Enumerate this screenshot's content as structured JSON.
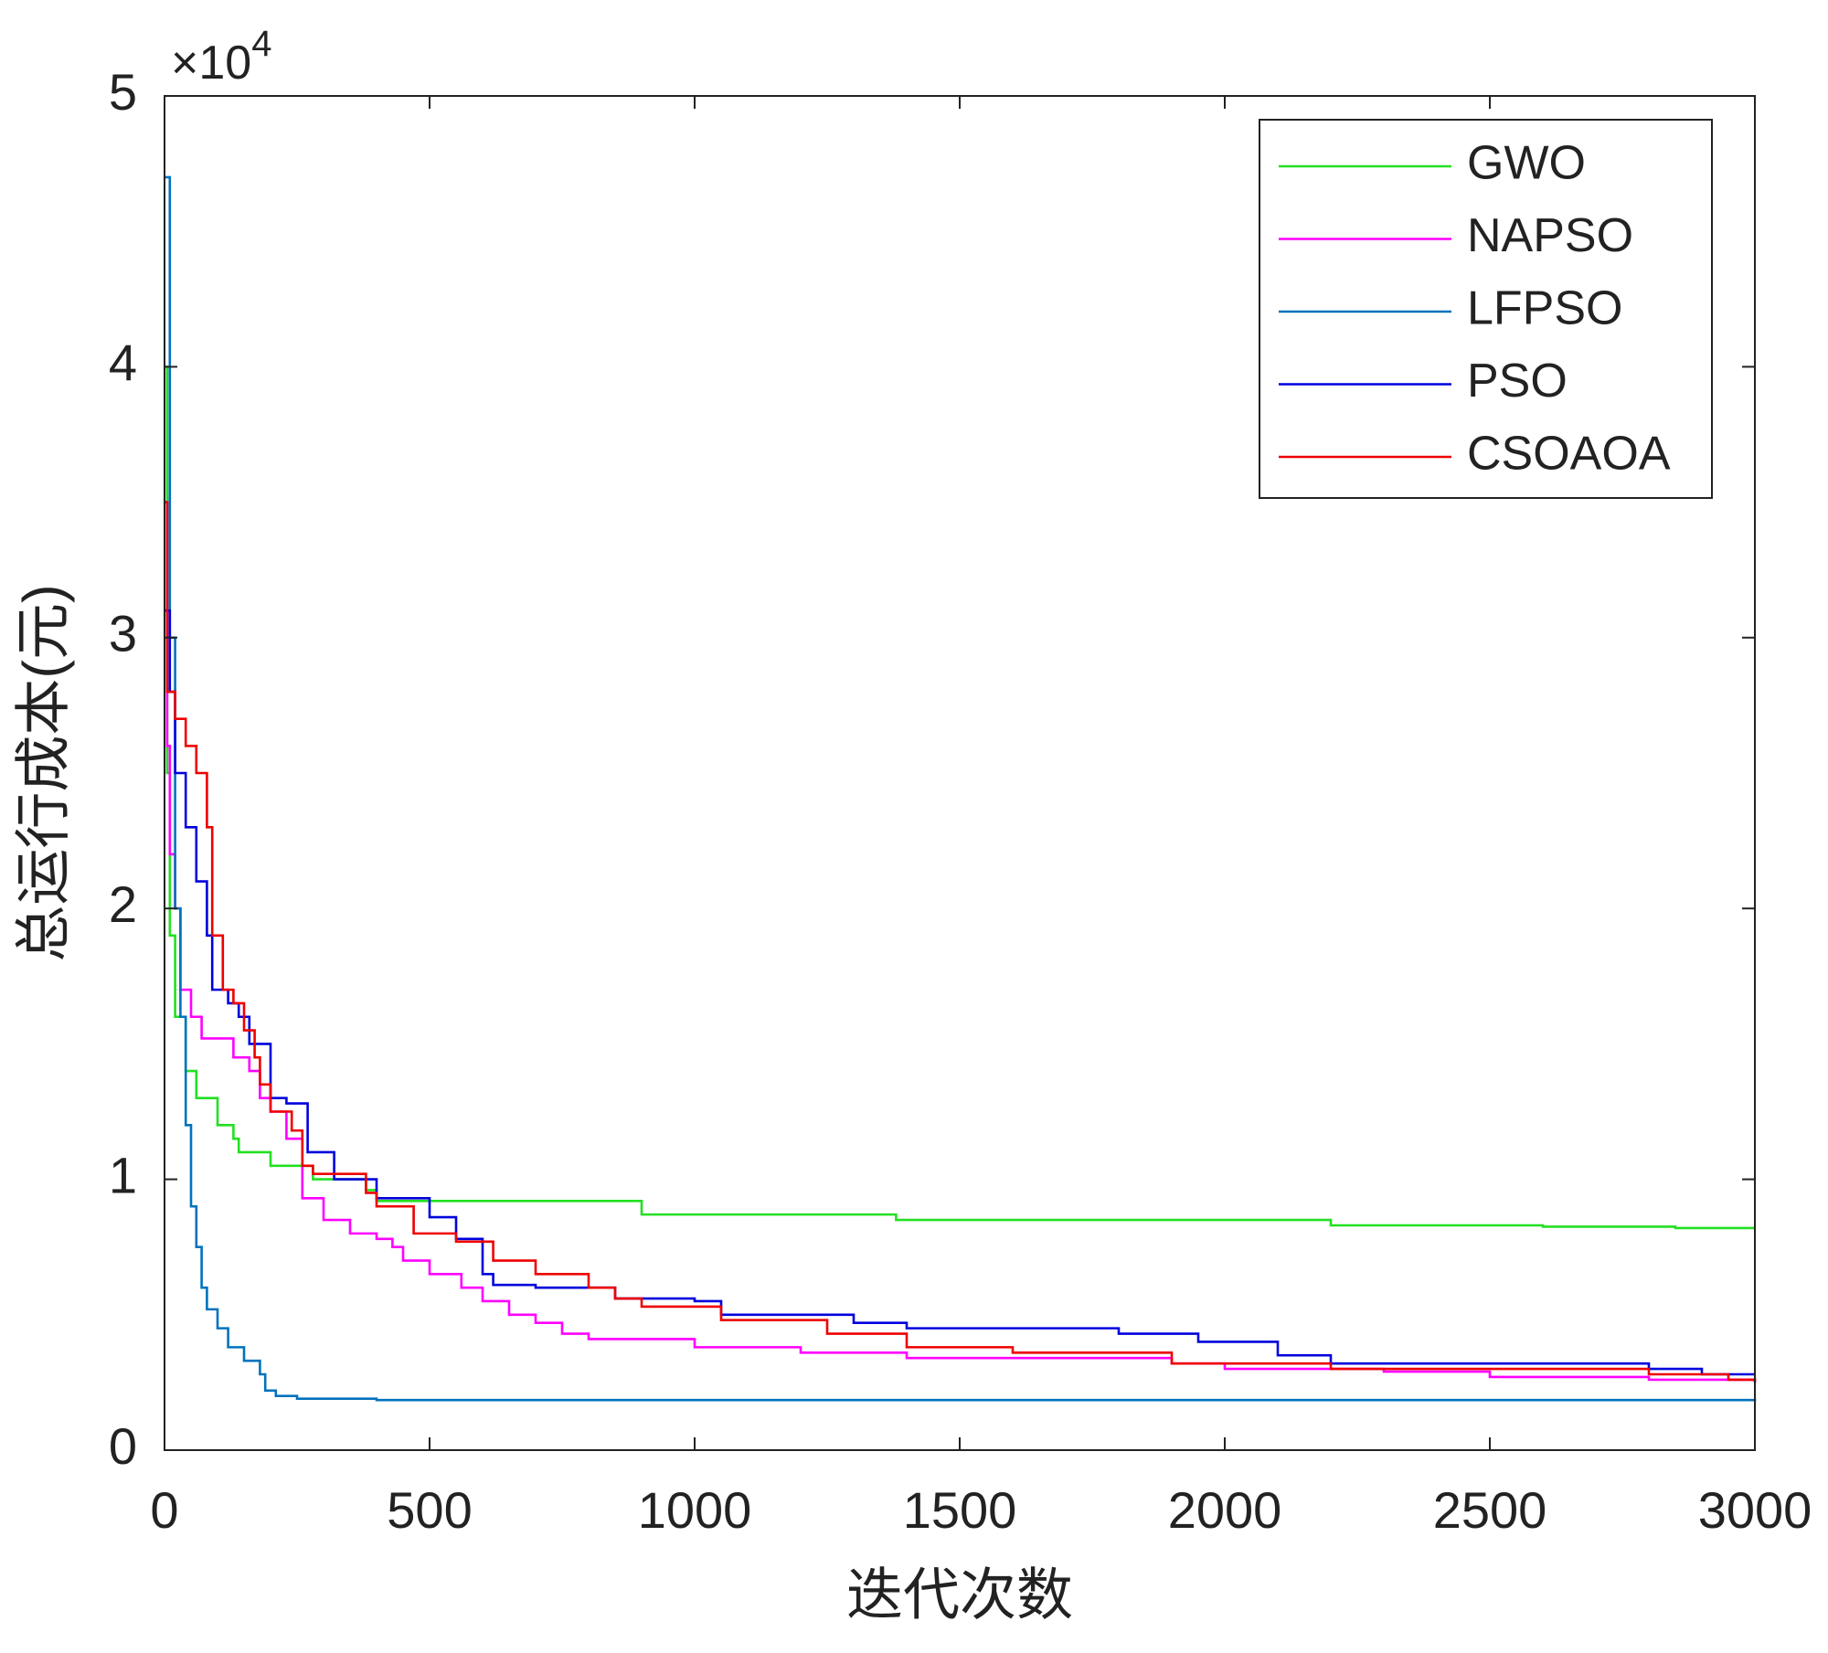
{
  "chart_data": {
    "type": "line",
    "drawstyle": "steps-post",
    "x_axis_label": "迭代次数",
    "y_axis_label": "总运行成本(元)",
    "y_scale_label": "×10",
    "y_scale_exponent": "4",
    "xlim": [
      0,
      3000
    ],
    "xticks": [
      0,
      500,
      1000,
      1500,
      2000,
      2500,
      3000
    ],
    "ylim": [
      0,
      5
    ],
    "yticks": [
      0,
      1,
      2,
      3,
      4,
      5
    ],
    "grid": false,
    "legend": "upper right",
    "series": [
      {
        "name": "GWO",
        "color": "#22e022",
        "x": [
          0,
          5,
          10,
          20,
          40,
          60,
          100,
          130,
          140,
          200,
          280,
          380,
          400,
          900,
          1380,
          2200,
          2600,
          2850,
          3000
        ],
        "values": [
          4.0,
          2.5,
          1.9,
          1.6,
          1.4,
          1.3,
          1.2,
          1.15,
          1.1,
          1.05,
          1.0,
          0.96,
          0.92,
          0.87,
          0.85,
          0.83,
          0.825,
          0.82,
          0.82
        ]
      },
      {
        "name": "NAPSO",
        "color": "#ff00ff",
        "x": [
          0,
          5,
          10,
          20,
          30,
          50,
          70,
          130,
          160,
          180,
          200,
          230,
          260,
          300,
          350,
          400,
          430,
          450,
          500,
          560,
          600,
          650,
          700,
          750,
          800,
          1000,
          1200,
          1400,
          1900,
          2000,
          2300,
          2500,
          2800,
          3000
        ],
        "values": [
          3.5,
          2.6,
          2.2,
          2.0,
          1.7,
          1.6,
          1.52,
          1.45,
          1.4,
          1.3,
          1.25,
          1.15,
          0.93,
          0.85,
          0.8,
          0.78,
          0.75,
          0.7,
          0.65,
          0.6,
          0.55,
          0.5,
          0.47,
          0.43,
          0.41,
          0.38,
          0.36,
          0.34,
          0.32,
          0.3,
          0.29,
          0.27,
          0.26,
          0.25
        ]
      },
      {
        "name": "LFPSO",
        "color": "#0072bd",
        "x": [
          0,
          10,
          20,
          30,
          40,
          50,
          60,
          70,
          80,
          100,
          120,
          150,
          180,
          190,
          210,
          250,
          400,
          3000
        ],
        "values": [
          4.7,
          3.0,
          2.0,
          1.6,
          1.2,
          0.9,
          0.75,
          0.6,
          0.52,
          0.45,
          0.38,
          0.33,
          0.28,
          0.22,
          0.2,
          0.19,
          0.185,
          0.18
        ]
      },
      {
        "name": "PSO",
        "color": "#0000dd",
        "x": [
          0,
          10,
          20,
          40,
          60,
          80,
          90,
          120,
          140,
          160,
          200,
          230,
          270,
          320,
          400,
          500,
          550,
          600,
          620,
          700,
          850,
          1000,
          1050,
          1300,
          1400,
          1800,
          1950,
          2100,
          2200,
          2800,
          2900,
          3000
        ],
        "values": [
          3.1,
          2.8,
          2.5,
          2.3,
          2.1,
          1.9,
          1.7,
          1.65,
          1.6,
          1.5,
          1.3,
          1.28,
          1.1,
          1.0,
          0.93,
          0.86,
          0.78,
          0.65,
          0.61,
          0.6,
          0.56,
          0.55,
          0.5,
          0.47,
          0.45,
          0.43,
          0.4,
          0.35,
          0.32,
          0.3,
          0.28,
          0.28
        ]
      },
      {
        "name": "CSOAOA",
        "color": "#ee0000",
        "x": [
          0,
          5,
          20,
          40,
          60,
          80,
          90,
          110,
          130,
          150,
          170,
          180,
          200,
          240,
          260,
          280,
          380,
          400,
          470,
          550,
          620,
          700,
          800,
          850,
          900,
          1050,
          1250,
          1400,
          1600,
          1900,
          2200,
          2800,
          2950,
          3000
        ],
        "values": [
          3.5,
          2.8,
          2.7,
          2.6,
          2.5,
          2.3,
          1.9,
          1.7,
          1.65,
          1.55,
          1.45,
          1.35,
          1.25,
          1.18,
          1.05,
          1.02,
          0.95,
          0.9,
          0.8,
          0.77,
          0.7,
          0.65,
          0.6,
          0.56,
          0.53,
          0.48,
          0.43,
          0.38,
          0.36,
          0.32,
          0.3,
          0.28,
          0.26,
          0.25
        ]
      }
    ]
  }
}
